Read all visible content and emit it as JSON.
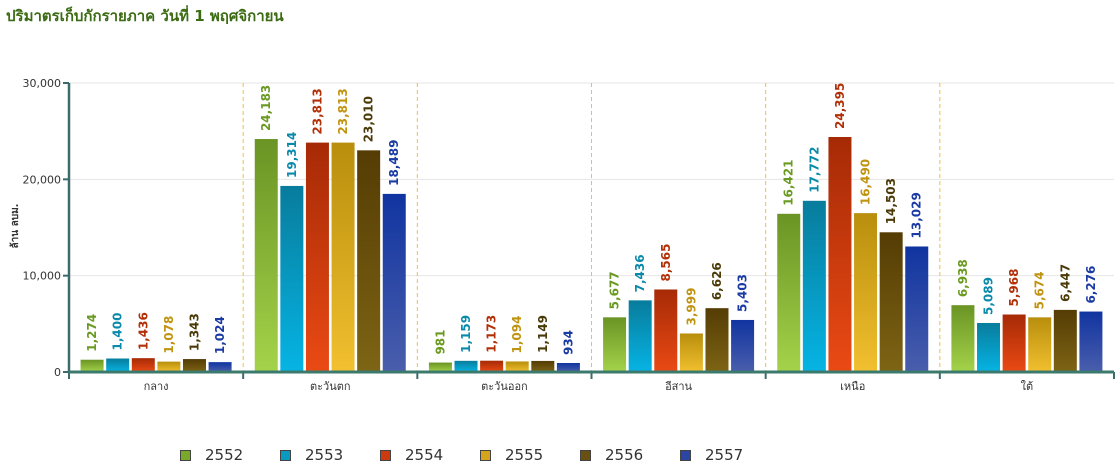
{
  "title": "ปริมาตรเก็บกักรายภาค วันที่ 1 พฤศจิกายน",
  "chart_data": {
    "type": "bar",
    "title": "ปริมาตรเก็บกักรายภาค วันที่ 1 พฤศจิกายน",
    "xlabel": "",
    "ylabel": "ล้าน ลบม.",
    "ylim": [
      0,
      30000
    ],
    "yticks": [
      0,
      10000,
      20000,
      30000
    ],
    "ytick_labels": [
      "0",
      "10,000",
      "20,000",
      "30,000"
    ],
    "grid": true,
    "legend_position": "bottom",
    "categories": [
      "กลาง",
      "ตะวันตก",
      "ตะวันออก",
      "อีสาน",
      "เหนือ",
      "ใต้"
    ],
    "series": [
      {
        "name": "2552",
        "color": "#7aa82a",
        "light": "#a4d34a",
        "dark": "#6a9424",
        "label_color": "#6a9a22",
        "values": [
          1274,
          24183,
          981,
          5677,
          16421,
          6938
        ],
        "labels": [
          "1,274",
          "24,183",
          "981",
          "5,677",
          "16,421",
          "6,938"
        ]
      },
      {
        "name": "2553",
        "color": "#0a9ac0",
        "light": "#06b4e4",
        "dark": "#087c9c",
        "label_color": "#0a8aaa",
        "values": [
          1400,
          19314,
          1159,
          7436,
          17772,
          5089
        ],
        "labels": [
          "1,400",
          "19,314",
          "1,159",
          "7,436",
          "17,772",
          "5,089"
        ]
      },
      {
        "name": "2554",
        "color": "#cc3a10",
        "light": "#ea4a14",
        "dark": "#a62a06",
        "label_color": "#b23008",
        "values": [
          1436,
          23813,
          1173,
          8565,
          24395,
          5968
        ],
        "labels": [
          "1,436",
          "23,813",
          "1,173",
          "8,565",
          "24,395",
          "5,968"
        ]
      },
      {
        "name": "2555",
        "color": "#d6a41c",
        "light": "#f2c030",
        "dark": "#b88e0c",
        "label_color": "#c09410",
        "values": [
          1078,
          23813,
          1094,
          3999,
          16490,
          5674
        ],
        "labels": [
          "1,078",
          "23,813",
          "1,094",
          "3,999",
          "16,490",
          "5,674"
        ]
      },
      {
        "name": "2556",
        "color": "#6a5010",
        "light": "#7e6414",
        "dark": "#543c04",
        "label_color": "#4a3a08",
        "values": [
          1343,
          23010,
          1149,
          6626,
          14503,
          6447
        ],
        "labels": [
          "1,343",
          "23,010",
          "1,149",
          "6,626",
          "14,503",
          "6,447"
        ]
      },
      {
        "name": "2557",
        "color": "#2a46a0",
        "light": "#4a5eac",
        "dark": "#1034a0",
        "label_color": "#1a3aa4",
        "values": [
          1024,
          18489,
          934,
          5403,
          13029,
          6276
        ],
        "labels": [
          "1,024",
          "18,489",
          "934",
          "5,403",
          "13,029",
          "6,276"
        ]
      }
    ]
  }
}
